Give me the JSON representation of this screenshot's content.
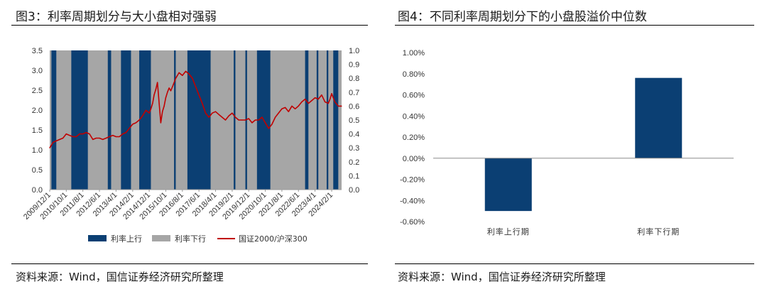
{
  "left": {
    "title": "图3：利率周期划分与大小盘相对强弱",
    "source": "资料来源：Wind，国信证券经济研究所整理"
  },
  "right": {
    "title": "图4：不同利率周期划分下的小盘股溢价中位数",
    "source": "资料来源：Wind，国信证券经济研究所整理"
  },
  "colors": {
    "up": "#0b3f73",
    "down": "#a6a6a6",
    "line": "#c00000",
    "bar": "#0b3f73"
  },
  "chart_data": [
    {
      "type": "area",
      "x_type": "date",
      "xlim": [
        "2009-12-01",
        "2024-08-01"
      ],
      "ylim": [
        0,
        3.5
      ],
      "y_ticks": [
        0.0,
        0.5,
        1.0,
        1.5,
        2.0,
        2.5,
        3.0,
        3.5
      ],
      "y2lim": [
        0,
        1.0
      ],
      "y2_ticks": [
        0.0,
        0.1,
        0.2,
        0.3,
        0.4,
        0.5,
        0.6,
        0.7,
        0.8,
        0.9,
        1.0
      ],
      "x_tick_labels": [
        "2009/12/1",
        "2010/10/1",
        "2011/8/1",
        "2012/6/1",
        "2013/4/1",
        "2014/2/1",
        "2014/12/1",
        "2015/10/1",
        "2016/8/1",
        "2017/6/1",
        "2018/4/1",
        "2019/2/1",
        "2019/12/1",
        "2020/10/1",
        "2021/8/1",
        "2022/6/1",
        "2023/4/1",
        "2024/2/1"
      ],
      "x_tick_dates": [
        "2009-12-01",
        "2010-10-01",
        "2011-08-01",
        "2012-06-01",
        "2013-04-01",
        "2014-02-01",
        "2014-12-01",
        "2015-10-01",
        "2016-08-01",
        "2017-06-01",
        "2018-04-01",
        "2019-02-01",
        "2019-12-01",
        "2020-10-01",
        "2021-08-01",
        "2022-06-01",
        "2023-04-01",
        "2024-02-01"
      ],
      "legend": [
        "利率上行",
        "利率下行",
        "国证2000/沪深300"
      ],
      "regime_up_periods": [
        [
          "2010-01-01",
          "2010-04-01"
        ],
        [
          "2011-01-01",
          "2011-11-01"
        ],
        [
          "2012-11-01",
          "2013-01-01"
        ],
        [
          "2013-07-01",
          "2014-01-01"
        ],
        [
          "2014-06-01",
          "2015-01-01"
        ],
        [
          "2016-03-01",
          "2016-04-01"
        ],
        [
          "2016-11-01",
          "2018-01-01"
        ],
        [
          "2019-03-01",
          "2019-04-01"
        ],
        [
          "2019-10-01",
          "2019-11-01"
        ],
        [
          "2020-05-01",
          "2021-01-01"
        ],
        [
          "2022-10-01",
          "2022-12-01"
        ],
        [
          "2023-05-01",
          "2023-06-01"
        ],
        [
          "2023-11-01",
          "2023-12-01"
        ],
        [
          "2024-03-01",
          "2024-06-01"
        ]
      ],
      "series": [
        {
          "name": "国证2000/沪深300",
          "axis": "right",
          "x": [
            "2009-12-01",
            "2010-02-01",
            "2010-04-01",
            "2010-06-01",
            "2010-08-01",
            "2010-10-01",
            "2010-12-01",
            "2011-02-01",
            "2011-04-01",
            "2011-06-01",
            "2011-08-01",
            "2011-10-01",
            "2011-12-01",
            "2012-02-01",
            "2012-04-01",
            "2012-06-01",
            "2012-08-01",
            "2012-10-01",
            "2012-12-01",
            "2013-02-01",
            "2013-04-01",
            "2013-06-01",
            "2013-08-01",
            "2013-10-01",
            "2013-12-01",
            "2014-02-01",
            "2014-04-01",
            "2014-06-01",
            "2014-08-01",
            "2014-10-01",
            "2014-11-01",
            "2014-12-01",
            "2015-01-01",
            "2015-02-01",
            "2015-03-01",
            "2015-04-01",
            "2015-05-01",
            "2015-06-01",
            "2015-07-01",
            "2015-08-01",
            "2015-09-01",
            "2015-10-01",
            "2015-11-01",
            "2015-12-01",
            "2016-01-01",
            "2016-02-01",
            "2016-04-01",
            "2016-06-01",
            "2016-08-01",
            "2016-10-01",
            "2016-12-01",
            "2017-02-01",
            "2017-04-01",
            "2017-06-01",
            "2017-08-01",
            "2017-10-01",
            "2017-12-01",
            "2018-02-01",
            "2018-04-01",
            "2018-06-01",
            "2018-08-01",
            "2018-10-01",
            "2018-12-01",
            "2019-02-01",
            "2019-04-01",
            "2019-06-01",
            "2019-08-01",
            "2019-10-01",
            "2019-12-01",
            "2020-02-01",
            "2020-04-01",
            "2020-06-01",
            "2020-08-01",
            "2020-10-01",
            "2020-12-01",
            "2021-02-01",
            "2021-04-01",
            "2021-06-01",
            "2021-08-01",
            "2021-10-01",
            "2021-12-01",
            "2022-02-01",
            "2022-04-01",
            "2022-06-01",
            "2022-08-01",
            "2022-10-01",
            "2022-12-01",
            "2023-02-01",
            "2023-04-01",
            "2023-06-01",
            "2023-08-01",
            "2023-10-01",
            "2023-12-01",
            "2024-01-01",
            "2024-02-01",
            "2024-04-01",
            "2024-06-01",
            "2024-08-01"
          ],
          "values": [
            0.3,
            0.34,
            0.35,
            0.36,
            0.37,
            0.4,
            0.39,
            0.38,
            0.38,
            0.4,
            0.4,
            0.41,
            0.4,
            0.36,
            0.37,
            0.37,
            0.36,
            0.37,
            0.38,
            0.39,
            0.38,
            0.38,
            0.4,
            0.41,
            0.44,
            0.47,
            0.48,
            0.5,
            0.53,
            0.57,
            0.56,
            0.55,
            0.58,
            0.62,
            0.68,
            0.72,
            0.77,
            0.62,
            0.48,
            0.56,
            0.6,
            0.66,
            0.7,
            0.73,
            0.71,
            0.74,
            0.8,
            0.84,
            0.82,
            0.85,
            0.83,
            0.8,
            0.74,
            0.68,
            0.62,
            0.55,
            0.52,
            0.55,
            0.56,
            0.54,
            0.52,
            0.5,
            0.53,
            0.55,
            0.52,
            0.5,
            0.5,
            0.5,
            0.51,
            0.48,
            0.5,
            0.5,
            0.52,
            0.48,
            0.44,
            0.47,
            0.52,
            0.55,
            0.58,
            0.59,
            0.56,
            0.6,
            0.58,
            0.6,
            0.63,
            0.65,
            0.62,
            0.64,
            0.66,
            0.65,
            0.68,
            0.63,
            0.62,
            0.65,
            0.69,
            0.63,
            0.6,
            0.6
          ]
        }
      ]
    },
    {
      "type": "bar",
      "categories": [
        "利率上行期",
        "利率下行期"
      ],
      "values": [
        -0.5,
        0.76
      ],
      "ylim": [
        -0.6,
        1.0
      ],
      "y_tick_labels": [
        "1.00%",
        "0.80%",
        "0.60%",
        "0.40%",
        "0.20%",
        "0.00%",
        "-0.20%",
        "-0.40%",
        "-0.60%"
      ],
      "y_tick_values": [
        1.0,
        0.8,
        0.6,
        0.4,
        0.2,
        0.0,
        -0.2,
        -0.4,
        -0.6
      ]
    }
  ]
}
